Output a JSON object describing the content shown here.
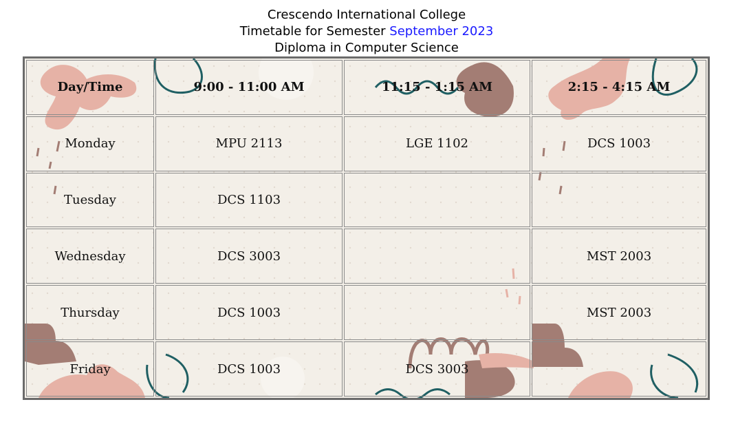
{
  "header": {
    "college": "Crescendo International College",
    "timetable_prefix": "Timetable for Semester ",
    "semester": "September 2023",
    "program": "Diploma in Computer Science"
  },
  "colors": {
    "accent": "#1a1aff",
    "table_background": "#f3efe8",
    "table_border": "#6b6b6b",
    "deco_pink": "#e6b2a6",
    "deco_brown": "#a37d74",
    "deco_teal": "#1f5f63"
  },
  "timetable": {
    "columns": [
      "Day/Time",
      "9:00 - 11:00 AM",
      "11:15 - 1:15 AM",
      "2:15 - 4:15 AM"
    ],
    "rows": [
      {
        "day": "Monday",
        "slots": [
          "MPU 2113",
          "LGE 1102",
          "DCS 1003"
        ]
      },
      {
        "day": "Tuesday",
        "slots": [
          "DCS 1103",
          "",
          ""
        ]
      },
      {
        "day": "Wednesday",
        "slots": [
          "DCS 3003",
          "",
          "MST 2003"
        ]
      },
      {
        "day": "Thursday",
        "slots": [
          "DCS 1003",
          "",
          "MST 2003"
        ]
      },
      {
        "day": "Friday",
        "slots": [
          "DCS 1003",
          "DCS 3003",
          ""
        ]
      }
    ]
  }
}
